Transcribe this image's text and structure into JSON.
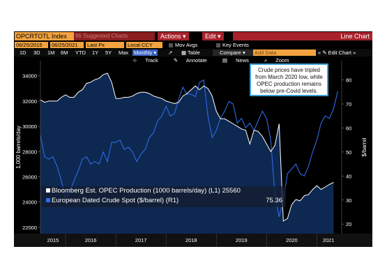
{
  "toolbar": {
    "ticker": "OPCRTOTL Index",
    "suggestions_label": "96 Suggested Charts",
    "actions_label": "Actions",
    "edit_label": "Edit",
    "view_title": "Line Chart",
    "start_date": "06/25/2015",
    "end_date": "06/25/2021",
    "price_field": "Last Px",
    "currency": "Local CCY",
    "mov_avgs_label": "Mov Avgs",
    "key_events_label": "Key Events",
    "ranges": [
      "1D",
      "3D",
      "1M",
      "6M",
      "YTD",
      "1Y",
      "5Y",
      "Max"
    ],
    "frequency": "Monthly",
    "table_label": "Table",
    "compare_label": "Compare",
    "add_data_placeholder": "Add Data",
    "edit_chart_label": "Edit Chart",
    "track_label": "Track",
    "annotate_label": "Annotate",
    "news_label": "News",
    "zoom_label": "Zoom"
  },
  "colors": {
    "production": "#ffffff",
    "crude": "#2f6be6",
    "fill": "#0e2a55",
    "accent_orange": "#f2a340",
    "accent_red": "#a8222b"
  },
  "chart_data": {
    "type": "line",
    "title": "",
    "xlabel": "",
    "ylabel_left": "1,000 barrels/day",
    "ylabel_right": "$/barrel",
    "ylim_left": [
      21500,
      35200
    ],
    "ylim_right": [
      16,
      88
    ],
    "yticks_left": [
      22000,
      24000,
      26000,
      28000,
      30000,
      32000,
      34000
    ],
    "yticks_right": [
      20,
      30,
      40,
      50,
      60,
      70,
      80
    ],
    "year_labels": [
      "2015",
      "2016",
      "2017",
      "2018",
      "2019",
      "2020",
      "2021"
    ],
    "year_starts": [
      "2015-07",
      "2016-01",
      "2017-01",
      "2018-01",
      "2019-01",
      "2020-01",
      "2021-01"
    ],
    "series": [
      {
        "name": "Bloomberg Est. OPEC Production (1000 barrels/day) (L1)",
        "axis": "left",
        "last_value": "25560",
        "x": [
          "2015-07",
          "2015-08",
          "2015-09",
          "2015-10",
          "2015-11",
          "2015-12",
          "2016-01",
          "2016-02",
          "2016-03",
          "2016-04",
          "2016-05",
          "2016-06",
          "2016-07",
          "2016-08",
          "2016-09",
          "2016-10",
          "2016-11",
          "2016-12",
          "2017-01",
          "2017-02",
          "2017-03",
          "2017-04",
          "2017-05",
          "2017-06",
          "2017-07",
          "2017-08",
          "2017-09",
          "2017-10",
          "2017-11",
          "2017-12",
          "2018-01",
          "2018-02",
          "2018-03",
          "2018-04",
          "2018-05",
          "2018-06",
          "2018-07",
          "2018-08",
          "2018-09",
          "2018-10",
          "2018-11",
          "2018-12",
          "2019-01",
          "2019-02",
          "2019-03",
          "2019-04",
          "2019-05",
          "2019-06",
          "2019-07",
          "2019-08",
          "2019-09",
          "2019-10",
          "2019-11",
          "2019-12",
          "2020-01",
          "2020-02",
          "2020-03",
          "2020-04",
          "2020-05",
          "2020-06",
          "2020-07",
          "2020-08",
          "2020-09",
          "2020-10",
          "2020-11",
          "2020-12",
          "2021-01",
          "2021-02",
          "2021-03",
          "2021-04",
          "2021-05"
        ],
        "values": [
          32100,
          31900,
          32000,
          32000,
          32000,
          32300,
          32500,
          32300,
          32300,
          32700,
          32900,
          33400,
          33500,
          33700,
          33800,
          34100,
          34200,
          33500,
          32200,
          32200,
          32300,
          32300,
          32400,
          32600,
          32700,
          32700,
          32600,
          32400,
          32300,
          32200,
          32000,
          31900,
          31800,
          31900,
          32400,
          32600,
          32900,
          33200,
          32900,
          33200,
          33000,
          32400,
          31200,
          30600,
          30600,
          30400,
          30200,
          30000,
          29800,
          29700,
          28600,
          29700,
          29600,
          29200,
          28600,
          28000,
          28500,
          30200,
          22500,
          22700,
          23800,
          24200,
          24100,
          24500,
          24600,
          25000,
          25300,
          25000,
          25200,
          25400,
          25560
        ]
      },
      {
        "name": "European Dated Crude Spot ($/barrel) (R1)",
        "axis": "right",
        "last_value": "75.36",
        "x": [
          "2015-07",
          "2015-08",
          "2015-09",
          "2015-10",
          "2015-11",
          "2015-12",
          "2016-01",
          "2016-02",
          "2016-03",
          "2016-04",
          "2016-05",
          "2016-06",
          "2016-07",
          "2016-08",
          "2016-09",
          "2016-10",
          "2016-11",
          "2016-12",
          "2017-01",
          "2017-02",
          "2017-03",
          "2017-04",
          "2017-05",
          "2017-06",
          "2017-07",
          "2017-08",
          "2017-09",
          "2017-10",
          "2017-11",
          "2017-12",
          "2018-01",
          "2018-02",
          "2018-03",
          "2018-04",
          "2018-05",
          "2018-06",
          "2018-07",
          "2018-08",
          "2018-09",
          "2018-10",
          "2018-11",
          "2018-12",
          "2019-01",
          "2019-02",
          "2019-03",
          "2019-04",
          "2019-05",
          "2019-06",
          "2019-07",
          "2019-08",
          "2019-09",
          "2019-10",
          "2019-11",
          "2019-12",
          "2020-01",
          "2020-02",
          "2020-03",
          "2020-04",
          "2020-05",
          "2020-06",
          "2020-07",
          "2020-08",
          "2020-09",
          "2020-10",
          "2020-11",
          "2020-12",
          "2021-01",
          "2021-02",
          "2021-03",
          "2021-04",
          "2021-05",
          "2021-06"
        ],
        "values": [
          57,
          48,
          47,
          48,
          44,
          38,
          31,
          33,
          38,
          42,
          47,
          48,
          45,
          46,
          45,
          50,
          46,
          54,
          54,
          55,
          51,
          52,
          50,
          46,
          49,
          51,
          56,
          58,
          63,
          65,
          69,
          65,
          66,
          72,
          77,
          74,
          74,
          73,
          79,
          80,
          65,
          56,
          59,
          64,
          67,
          71,
          70,
          62,
          64,
          60,
          62,
          59,
          63,
          67,
          64,
          55,
          32,
          23,
          30,
          41,
          43,
          45,
          41,
          40,
          44,
          50,
          55,
          62,
          65,
          64,
          68,
          75.36
        ]
      }
    ],
    "annotation": "Crude prices have tripled from March 2020 low, while OPEC production remains below pre-Covid levels."
  }
}
